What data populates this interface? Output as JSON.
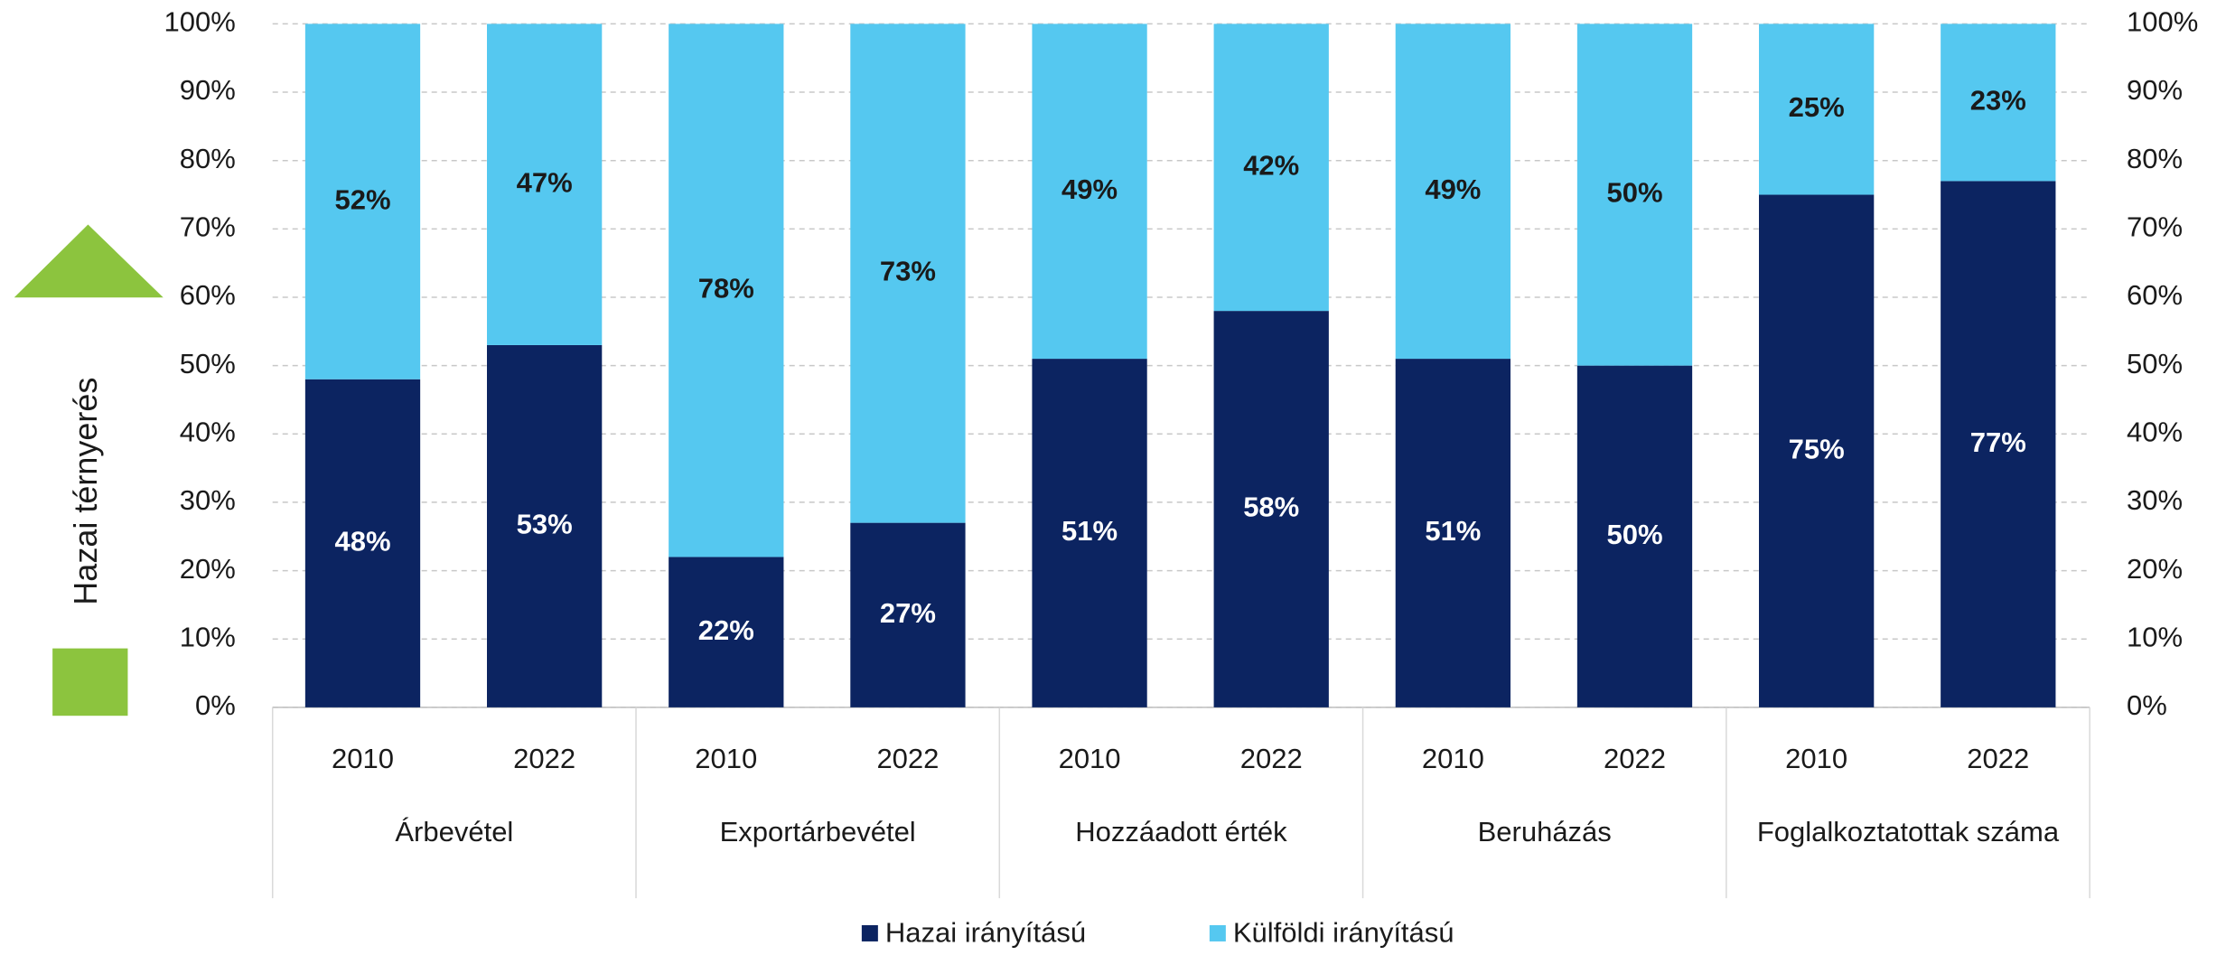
{
  "chart_data": {
    "type": "stacked_bar_100",
    "annotation": "Hazai térnyerés",
    "categories": [
      "2010",
      "2022",
      "2010",
      "2022",
      "2010",
      "2022",
      "2010",
      "2022",
      "2010",
      "2022"
    ],
    "group_labels": [
      "Árbevétel",
      "Exportárbevétel",
      "Hozzáadott érték",
      "Beruházás",
      "Foglalkoztatottak száma"
    ],
    "series": [
      {
        "name": "Hazai irányítású",
        "color": "#0c2461",
        "label_color": "#ffffff",
        "values": [
          48,
          53,
          22,
          27,
          51,
          58,
          51,
          50,
          75,
          77
        ],
        "value_labels": [
          "48%",
          "53%",
          "22%",
          "27%",
          "51%",
          "58%",
          "51%",
          "50%",
          "75%",
          "77%"
        ]
      },
      {
        "name": "Külföldi irányítású",
        "color": "#55c8f0",
        "label_color": "#1a1a1a",
        "values": [
          52,
          47,
          78,
          73,
          49,
          42,
          49,
          50,
          25,
          23
        ],
        "value_labels": [
          "52%",
          "47%",
          "78%",
          "73%",
          "49%",
          "42%",
          "49%",
          "50%",
          "25%",
          "23%"
        ]
      }
    ],
    "ylim": [
      0,
      100
    ],
    "yticks": [
      {
        "value": 0,
        "label": "0%"
      },
      {
        "value": 10,
        "label": "10%"
      },
      {
        "value": 20,
        "label": "20%"
      },
      {
        "value": 30,
        "label": "30%"
      },
      {
        "value": 40,
        "label": "40%"
      },
      {
        "value": 50,
        "label": "50%"
      },
      {
        "value": 60,
        "label": "60%"
      },
      {
        "value": 70,
        "label": "70%"
      },
      {
        "value": 80,
        "label": "80%"
      },
      {
        "value": 90,
        "label": "90%"
      },
      {
        "value": 100,
        "label": "100%"
      }
    ],
    "y2lim": [
      0,
      100
    ],
    "y2ticks": [
      {
        "value": 0,
        "label": "0%"
      },
      {
        "value": 10,
        "label": "10%"
      },
      {
        "value": 20,
        "label": "20%"
      },
      {
        "value": 30,
        "label": "30%"
      },
      {
        "value": 40,
        "label": "40%"
      },
      {
        "value": 50,
        "label": "50%"
      },
      {
        "value": 60,
        "label": "60%"
      },
      {
        "value": 70,
        "label": "70%"
      },
      {
        "value": 80,
        "label": "80%"
      },
      {
        "value": 90,
        "label": "90%"
      },
      {
        "value": 100,
        "label": "100%"
      }
    ],
    "grid": true,
    "legend": "bottom"
  }
}
